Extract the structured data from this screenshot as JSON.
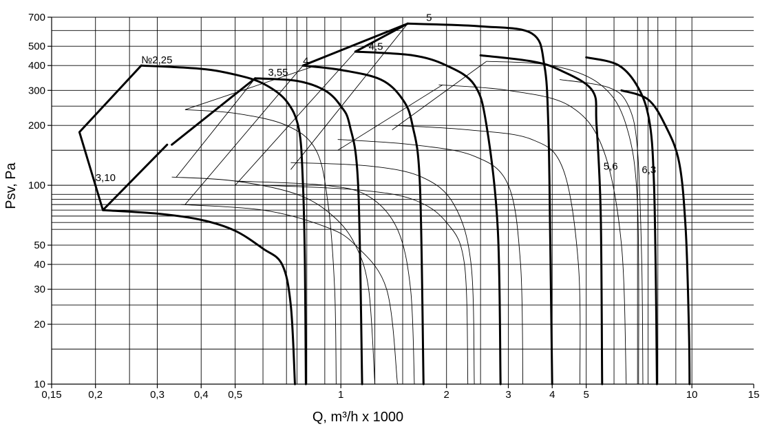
{
  "chart_data": {
    "type": "line",
    "xlabel": "Q, m³/h x 1000",
    "ylabel": "Psv, Pa",
    "x_scale": "log",
    "y_scale": "log",
    "xlim": [
      0.15,
      15
    ],
    "ylim": [
      10,
      700
    ],
    "grid": true,
    "x_ticks": [
      {
        "v": 0.15,
        "label": "0,15"
      },
      {
        "v": 0.2,
        "label": "0,2"
      },
      {
        "v": 0.3,
        "label": "0,3"
      },
      {
        "v": 0.4,
        "label": "0,4"
      },
      {
        "v": 0.5,
        "label": "0,5"
      },
      {
        "v": 1,
        "label": "1"
      },
      {
        "v": 2,
        "label": "2"
      },
      {
        "v": 3,
        "label": "3"
      },
      {
        "v": 4,
        "label": "4"
      },
      {
        "v": 5,
        "label": "5"
      },
      {
        "v": 10,
        "label": "10"
      },
      {
        "v": 15,
        "label": "15"
      }
    ],
    "x_grid": [
      0.2,
      0.25,
      0.3,
      0.4,
      0.5,
      0.6,
      0.7,
      0.75,
      0.8,
      0.9,
      1,
      1.25,
      1.5,
      2,
      2.5,
      3,
      4,
      5,
      6,
      7,
      7.5,
      8,
      9,
      10
    ],
    "y_ticks": [
      {
        "v": 10,
        "label": "10"
      },
      {
        "v": 20,
        "label": "20"
      },
      {
        "v": 30,
        "label": "30"
      },
      {
        "v": 40,
        "label": "40"
      },
      {
        "v": 50,
        "label": "50"
      },
      {
        "v": 100,
        "label": "100"
      },
      {
        "v": 200,
        "label": "200"
      },
      {
        "v": 300,
        "label": "300"
      },
      {
        "v": 400,
        "label": "400"
      },
      {
        "v": 500,
        "label": "500"
      },
      {
        "v": 700,
        "label": "700"
      }
    ],
    "y_grid": [
      15,
      20,
      25,
      30,
      40,
      50,
      60,
      65,
      70,
      75,
      80,
      85,
      90,
      100,
      150,
      200,
      250,
      300,
      400,
      500,
      600,
      700
    ],
    "series": [
      {
        "name": "№2,25",
        "weight": "thick",
        "label_at": [
          0.27,
          410
        ],
        "points": [
          [
            0.27,
            400
          ],
          [
            0.4,
            385
          ],
          [
            0.5,
            360
          ],
          [
            0.6,
            325
          ],
          [
            0.7,
            265
          ],
          [
            0.76,
            190
          ],
          [
            0.78,
            100
          ],
          [
            0.79,
            40
          ],
          [
            0.795,
            10
          ]
        ]
      },
      {
        "name": "3,10",
        "weight": "thick",
        "label_at": [
          0.2,
          105
        ],
        "points": [
          [
            0.21,
            75
          ],
          [
            0.3,
            72
          ],
          [
            0.4,
            67
          ],
          [
            0.5,
            59
          ],
          [
            0.6,
            48
          ],
          [
            0.68,
            40
          ],
          [
            0.72,
            25
          ],
          [
            0.74,
            10
          ]
        ]
      },
      {
        "name": "3,55",
        "weight": "thick",
        "label_at": [
          0.62,
          355
        ],
        "points": [
          [
            0.57,
            345
          ],
          [
            0.75,
            335
          ],
          [
            0.9,
            300
          ],
          [
            1.0,
            250
          ],
          [
            1.06,
            200
          ],
          [
            1.12,
            100
          ],
          [
            1.15,
            10
          ]
        ]
      },
      {
        "name": "4",
        "weight": "thick",
        "label_at": [
          0.78,
          405
        ],
        "points": [
          [
            0.78,
            400
          ],
          [
            1.0,
            380
          ],
          [
            1.3,
            340
          ],
          [
            1.5,
            270
          ],
          [
            1.6,
            200
          ],
          [
            1.68,
            100
          ],
          [
            1.72,
            10
          ]
        ]
      },
      {
        "name": "4,5",
        "weight": "thick",
        "label_at": [
          1.2,
          480
        ],
        "points": [
          [
            1.1,
            470
          ],
          [
            1.6,
            450
          ],
          [
            2.0,
            400
          ],
          [
            2.4,
            320
          ],
          [
            2.6,
            200
          ],
          [
            2.8,
            60
          ],
          [
            2.85,
            10
          ]
        ]
      },
      {
        "name": "5",
        "weight": "thick",
        "label_at": [
          1.75,
          670
        ],
        "points": [
          [
            1.55,
            650
          ],
          [
            2.5,
            630
          ],
          [
            3.5,
            580
          ],
          [
            3.8,
            400
          ],
          [
            3.9,
            200
          ],
          [
            3.95,
            50
          ],
          [
            4.0,
            10
          ]
        ]
      },
      {
        "name": "5,6",
        "weight": "thick",
        "label_at": [
          5.6,
          120
        ],
        "points": [
          [
            2.5,
            450
          ],
          [
            3.5,
            420
          ],
          [
            4.2,
            380
          ],
          [
            5.2,
            300
          ],
          [
            5.35,
            200
          ],
          [
            5.5,
            70
          ],
          [
            5.55,
            10
          ]
        ]
      },
      {
        "name": "6,3",
        "weight": "thick",
        "label_at": [
          7.2,
          115
        ],
        "points": [
          [
            5.0,
            440
          ],
          [
            6.2,
            400
          ],
          [
            7.1,
            300
          ],
          [
            7.6,
            200
          ],
          [
            7.8,
            100
          ],
          [
            7.9,
            30
          ],
          [
            7.95,
            10
          ]
        ]
      },
      {
        "name": "",
        "weight": "thick",
        "points": [
          [
            6.3,
            300
          ],
          [
            7.5,
            270
          ],
          [
            8.4,
            200
          ],
          [
            9.2,
            130
          ],
          [
            9.6,
            60
          ],
          [
            9.8,
            20
          ],
          [
            9.85,
            10
          ]
        ]
      },
      {
        "name": "",
        "weight": "thin",
        "points": [
          [
            0.36,
            240
          ],
          [
            0.5,
            230
          ],
          [
            0.7,
            200
          ],
          [
            0.85,
            150
          ],
          [
            0.92,
            80
          ],
          [
            0.96,
            30
          ],
          [
            0.97,
            10
          ]
        ]
      },
      {
        "name": "",
        "weight": "thin",
        "points": [
          [
            0.33,
            110
          ],
          [
            0.5,
            105
          ],
          [
            0.75,
            90
          ],
          [
            0.95,
            70
          ],
          [
            1.1,
            50
          ],
          [
            1.2,
            30
          ],
          [
            1.25,
            10
          ]
        ]
      },
      {
        "name": "",
        "weight": "thin",
        "points": [
          [
            0.35,
            80
          ],
          [
            0.6,
            75
          ],
          [
            0.9,
            62
          ],
          [
            1.1,
            50
          ],
          [
            1.35,
            30
          ],
          [
            1.45,
            10
          ]
        ]
      },
      {
        "name": "",
        "weight": "thin",
        "points": [
          [
            0.5,
            105
          ],
          [
            0.9,
            100
          ],
          [
            1.2,
            88
          ],
          [
            1.45,
            60
          ],
          [
            1.58,
            30
          ],
          [
            1.62,
            10
          ]
        ]
      },
      {
        "name": "",
        "weight": "thin",
        "points": [
          [
            0.72,
            130
          ],
          [
            1.2,
            125
          ],
          [
            1.7,
            110
          ],
          [
            2.1,
            80
          ],
          [
            2.35,
            40
          ],
          [
            2.4,
            10
          ]
        ]
      },
      {
        "name": "",
        "weight": "thin",
        "points": [
          [
            0.6,
            100
          ],
          [
            1.1,
            95
          ],
          [
            1.6,
            85
          ],
          [
            2.0,
            65
          ],
          [
            2.25,
            40
          ],
          [
            2.3,
            10
          ]
        ]
      },
      {
        "name": "",
        "weight": "thin",
        "points": [
          [
            0.98,
            170
          ],
          [
            1.6,
            160
          ],
          [
            2.4,
            140
          ],
          [
            3.0,
            100
          ],
          [
            3.25,
            40
          ],
          [
            3.3,
            10
          ]
        ]
      },
      {
        "name": "",
        "weight": "thin",
        "points": [
          [
            1.42,
            200
          ],
          [
            2.3,
            190
          ],
          [
            3.5,
            170
          ],
          [
            4.3,
            120
          ],
          [
            4.75,
            40
          ],
          [
            4.8,
            10
          ]
        ]
      },
      {
        "name": "",
        "weight": "thin",
        "points": [
          [
            1.9,
            320
          ],
          [
            3.0,
            300
          ],
          [
            4.5,
            250
          ],
          [
            5.6,
            150
          ],
          [
            6.3,
            50
          ],
          [
            6.5,
            10
          ]
        ]
      },
      {
        "name": "",
        "weight": "thin",
        "points": [
          [
            2.6,
            420
          ],
          [
            4.0,
            400
          ],
          [
            5.5,
            320
          ],
          [
            6.5,
            200
          ],
          [
            7.0,
            80
          ],
          [
            7.05,
            10
          ]
        ]
      },
      {
        "name": "",
        "weight": "thin",
        "points": [
          [
            4.2,
            340
          ],
          [
            5.8,
            310
          ],
          [
            6.6,
            250
          ],
          [
            7.0,
            150
          ],
          [
            7.2,
            40
          ],
          [
            7.25,
            10
          ]
        ]
      }
    ],
    "connectors": [
      {
        "weight": "thick",
        "points": [
          [
            0.27,
            400
          ],
          [
            0.18,
            185
          ],
          [
            0.21,
            75
          ],
          [
            0.32,
            160
          ]
        ]
      },
      {
        "weight": "thick",
        "points": [
          [
            0.33,
            160
          ],
          [
            0.57,
            345
          ]
        ]
      },
      {
        "weight": "thick",
        "points": [
          [
            0.78,
            400
          ],
          [
            1.55,
            650
          ]
        ]
      },
      {
        "weight": "thick",
        "points": [
          [
            1.1,
            470
          ],
          [
            1.55,
            650
          ]
        ]
      },
      {
        "weight": "thin",
        "points": [
          [
            0.34,
            110
          ],
          [
            0.57,
            345
          ]
        ]
      },
      {
        "weight": "thin",
        "points": [
          [
            0.36,
            80
          ],
          [
            0.78,
            400
          ]
        ]
      },
      {
        "weight": "thin",
        "points": [
          [
            0.5,
            100
          ],
          [
            1.1,
            470
          ]
        ]
      },
      {
        "weight": "thin",
        "points": [
          [
            0.72,
            120
          ],
          [
            1.55,
            650
          ]
        ]
      },
      {
        "weight": "thin",
        "points": [
          [
            0.98,
            150
          ],
          [
            1.95,
            320
          ]
        ]
      },
      {
        "weight": "thin",
        "points": [
          [
            1.4,
            190
          ],
          [
            2.6,
            420
          ]
        ]
      },
      {
        "weight": "thin",
        "points": [
          [
            0.36,
            240
          ],
          [
            0.85,
            400
          ]
        ]
      }
    ]
  }
}
